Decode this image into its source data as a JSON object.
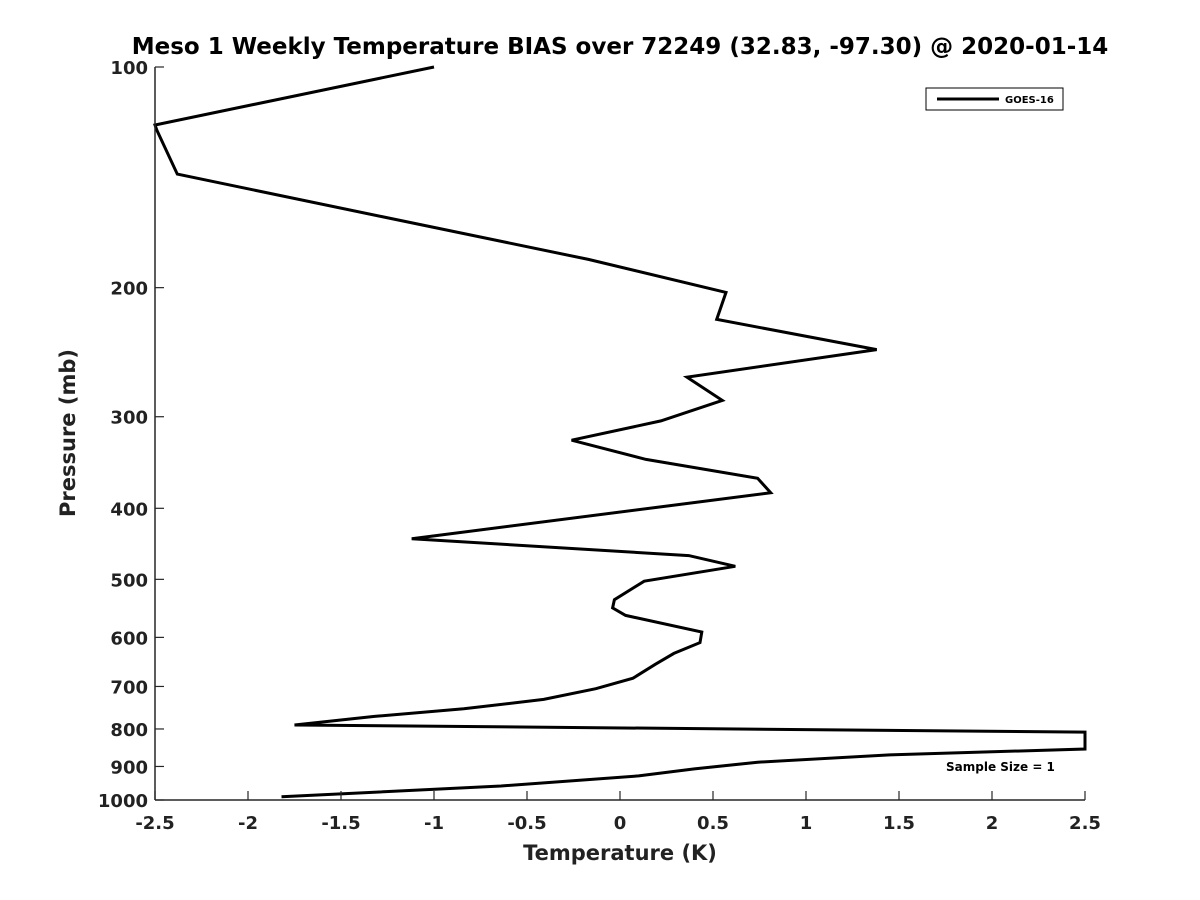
{
  "chart_data": {
    "type": "line",
    "title": "Meso 1 Weekly Temperature BIAS over 72249 (32.83, -97.30) @ 2020-01-14",
    "xlabel": "Temperature (K)",
    "ylabel": "Pressure (mb)",
    "xlim": [
      -2.5,
      2.5
    ],
    "ylim": [
      100,
      1000
    ],
    "y_scale": "log",
    "y_reversed": true,
    "grid": false,
    "x_ticks": [
      -2.5,
      -2,
      -1.5,
      -1,
      -0.5,
      0,
      0.5,
      1,
      1.5,
      2,
      2.5
    ],
    "x_tick_labels": [
      "-2.5",
      "-2",
      "-1.5",
      "-1",
      "-0.5",
      "0",
      "0.5",
      "1",
      "1.5",
      "2",
      "2.5"
    ],
    "y_ticks": [
      100,
      200,
      300,
      400,
      500,
      600,
      700,
      800,
      900,
      1000
    ],
    "y_tick_labels": [
      "100",
      "200",
      "300",
      "400",
      "500",
      "600",
      "700",
      "800",
      "900",
      "1000"
    ],
    "legend": {
      "position": "top-right",
      "entries": [
        "GOES-16"
      ]
    },
    "annotation": "Sample Size = 1",
    "line_color": "#000000",
    "series": [
      {
        "name": "GOES-16",
        "x": [
          -1.0,
          -2.5,
          -2.49,
          -2.38,
          -1.28,
          -0.17,
          0.57,
          0.52,
          1.38,
          0.36,
          0.55,
          0.22,
          -0.26,
          0.14,
          0.74,
          0.81,
          -1.12,
          0.37,
          0.62,
          0.13,
          -0.03,
          -0.04,
          0.03,
          0.44,
          0.43,
          0.29,
          0.19,
          0.07,
          -0.13,
          -0.41,
          -0.84,
          -1.32,
          -1.75,
          2.5,
          2.5,
          1.45,
          0.74,
          0.4,
          0.1,
          -0.64,
          -1.82
        ],
        "y": [
          100,
          120,
          122,
          140,
          160,
          183,
          203,
          221,
          243,
          265,
          285,
          304,
          323,
          343,
          364,
          381,
          440,
          464,
          480,
          503,
          533,
          547,
          560,
          590,
          610,
          631,
          653,
          682,
          705,
          729,
          751,
          769,
          790,
          808,
          852,
          868,
          888,
          907,
          927,
          957,
          990
        ]
      }
    ]
  }
}
